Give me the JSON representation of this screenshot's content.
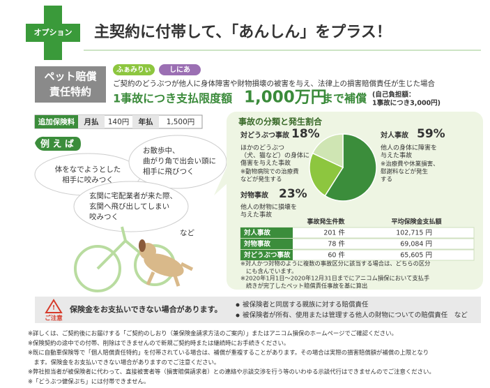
{
  "header": {
    "badge": "オプション",
    "title": "主契約に付帯して、「あんしん」をプラス！"
  },
  "rider": {
    "label_lines": [
      "ペット賠償",
      "責任特約"
    ],
    "tags": [
      "ふぁみりぃ",
      "しにあ"
    ],
    "description": "ご契約のどうぶつが他人に身体障害や財物損壊の被害を与え、法律上の損害賠償責任が生じた場合",
    "headline": {
      "prefix": "1事故につき支払限度額",
      "amount": "1,000万円",
      "suffix": "まで補償"
    },
    "deductible_lines": [
      "(自己負担額：",
      "1事故につき3,000円)"
    ]
  },
  "premium": {
    "label": "追加保険料",
    "monthly_label": "月払",
    "monthly": "140円",
    "annual_label": "年払",
    "annual": "1,500円"
  },
  "examples": {
    "title": "例 え ば",
    "bubbles": [
      [
        "体をなでようとした",
        "相手に咬みつく"
      ],
      [
        "お散歩中、",
        "曲がり角で出会い頭に",
        "相手に飛びつく"
      ],
      [
        "玄関に宅配業者が来た際、",
        "玄関へ飛び出してしまい",
        "咬みつく"
      ]
    ],
    "etc": "など"
  },
  "accidents": {
    "title": "事故の分類と発生割合",
    "slices": [
      {
        "name": "対人事故",
        "value": 59,
        "value_label": "59%",
        "color": "#3b8d3b",
        "description": [
          "他人の身体に障害を",
          "与えた事故"
        ],
        "note": [
          "※治療費や休業損害、",
          "慰謝料などが発生",
          "する"
        ]
      },
      {
        "name": "対物事故",
        "value": 23,
        "value_label": "23%",
        "color": "#8dc63f",
        "description": [
          "他人の財物に損壊を",
          "与えた事故"
        ],
        "note": []
      },
      {
        "name": "対どうぶつ事故",
        "value": 18,
        "value_label": "18%",
        "color": "#cfe5b3",
        "description": [
          "ほかのどうぶつ",
          "（犬、猫など）の身体に",
          "傷害を与えた事故"
        ],
        "note": [
          "※動物病院での治療費",
          "などが発生する"
        ]
      }
    ],
    "table": {
      "headers": [
        "事故発生件数",
        "平均保険金支払額"
      ],
      "rows": [
        [
          "対人事故",
          "201 件",
          "102,715 円"
        ],
        [
          "対物事故",
          "78 件",
          "69,084 円"
        ],
        [
          "対どうぶつ事故",
          "60 件",
          "65,605 円"
        ]
      ]
    },
    "notes": [
      [
        "※対人かつ対物のように複数の事故区分に該当する場合は、どちらの区分",
        "にも含んでいます。"
      ],
      [
        "※2020年1月1日～2020年12月31日までにアニコム損保において支払手",
        "続きが完了したペット賠償責任事故を基に算出"
      ]
    ]
  },
  "caution": {
    "icon_label": "ご注意",
    "message": "保険金をお支払いできない場合があります。",
    "items": [
      "被保険者と同居する親族に対する賠償責任",
      "被保険者が所有、使用または管理する他人の財物についての賠償責任　など"
    ]
  },
  "footnotes": [
    [
      "※詳しくは、ご契約後にお届けする「ご契約のしおり（兼保険金請求方法のご案内）」またはアニコム損保のホームページでご確認ください。"
    ],
    [
      "※保険契約の途中での付帯、削除はできませんので新規ご契約時または継続時にお手続きください。"
    ],
    [
      "※既に自動車保険等で「個人賠償責任特約」を付帯されている場合は、補償が重複することがあります。その場合は実際の損害賠償額が補償の上限となり",
      "　ます。保険金をお支払いできない場合がありますのでご注意ください。"
    ],
    [
      "※弊社担当者が被保険者に代わって、直接被害者等（損害賠償請求者）との連絡や示談交渉を行う等のいわゆる示談代行はできませんのでご注意ください。"
    ],
    [
      "※「どうぶつ健保ぷち」には付帯できません。"
    ]
  ]
}
